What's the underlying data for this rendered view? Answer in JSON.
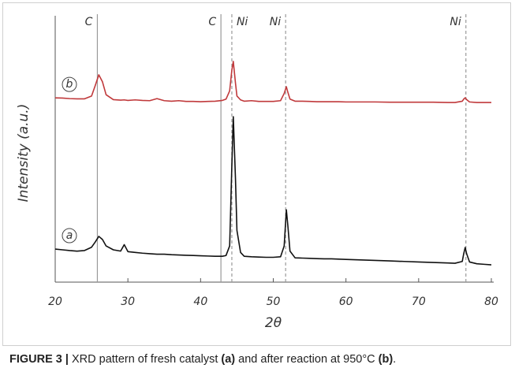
{
  "chart_data": {
    "type": "line",
    "x_label": "2θ",
    "y_label": "Intensity (a.u.)",
    "xlim": [
      20,
      80
    ],
    "xticks": [
      20,
      30,
      40,
      50,
      60,
      70,
      80
    ],
    "ylim": [
      0,
      100
    ],
    "x": [
      20,
      21,
      22,
      23,
      24,
      25,
      25.5,
      26,
      26.5,
      27,
      28,
      29,
      29.5,
      30,
      31,
      32,
      33,
      34,
      35,
      36,
      37,
      38,
      39,
      40,
      41,
      42,
      43,
      43.5,
      44,
      44.3,
      44.5,
      44.8,
      45,
      45.5,
      46,
      47,
      48,
      49,
      50,
      51,
      51.5,
      51.8,
      52,
      52.3,
      53,
      54,
      55,
      56,
      57,
      58,
      59,
      60,
      62,
      64,
      66,
      68,
      70,
      72,
      74,
      75,
      76,
      76.2,
      76.4,
      76.6,
      77,
      78,
      79,
      80
    ],
    "series": [
      {
        "name": "a",
        "color": "#111111",
        "values": [
          12.8,
          12.5,
          12.2,
          12.0,
          12.2,
          13.5,
          15.5,
          17.7,
          16.5,
          14.0,
          12.5,
          12.0,
          14.5,
          11.8,
          11.5,
          11.2,
          11.0,
          10.8,
          10.8,
          10.6,
          10.5,
          10.4,
          10.3,
          10.2,
          10.1,
          10.0,
          10.0,
          10.3,
          14,
          45,
          64,
          40,
          20,
          11.5,
          10.0,
          9.8,
          9.7,
          9.6,
          9.6,
          9.8,
          14,
          28,
          22,
          12,
          9.4,
          9.3,
          9.2,
          9.1,
          9.0,
          9.0,
          8.9,
          8.8,
          8.6,
          8.4,
          8.2,
          8.0,
          7.8,
          7.6,
          7.4,
          7.3,
          8.0,
          11,
          13.4,
          11,
          7.8,
          7.1,
          6.9,
          6.7
        ]
      },
      {
        "name": "b",
        "color": "#c0393b",
        "values": [
          71.3,
          71.2,
          71.0,
          70.9,
          70.9,
          72.0,
          76.0,
          80.2,
          77.5,
          72.5,
          70.6,
          70.4,
          70.5,
          70.3,
          70.5,
          70.3,
          70.2,
          71.0,
          70.2,
          70.0,
          70.2,
          69.9,
          69.9,
          69.8,
          69.9,
          70.0,
          70.3,
          70.8,
          74,
          82,
          85.4,
          77,
          72,
          70.5,
          70.0,
          70.2,
          69.9,
          69.9,
          69.9,
          70.2,
          73,
          75.6,
          73.5,
          70.8,
          70.0,
          70.0,
          69.9,
          69.8,
          69.8,
          69.8,
          69.8,
          69.7,
          69.7,
          69.7,
          69.6,
          69.6,
          69.6,
          69.6,
          69.5,
          69.5,
          70.0,
          70.8,
          71.3,
          70.6,
          69.7,
          69.5,
          69.5,
          69.5
        ]
      }
    ],
    "reference_lines": [
      {
        "x": 25.8,
        "label": "C",
        "style": "solid",
        "color": "#9a9a9a"
      },
      {
        "x": 42.8,
        "label": "C",
        "style": "solid",
        "color": "#9a9a9a"
      },
      {
        "x": 44.3,
        "label": "Ni",
        "style": "dashed",
        "color": "#9a9a9a"
      },
      {
        "x": 51.7,
        "label": "Ni",
        "style": "dashed",
        "color": "#9a9a9a"
      },
      {
        "x": 76.5,
        "label": "Ni",
        "style": "dashed",
        "color": "#9a9a9a"
      }
    ]
  },
  "caption": {
    "parts": [
      {
        "text": "FIGURE 3 |",
        "bold": true
      },
      {
        "text": " XRD pattern of fresh catalyst ",
        "bold": false
      },
      {
        "text": "(a)",
        "bold": true
      },
      {
        "text": " and after reaction at 950°C ",
        "bold": false
      },
      {
        "text": "(b)",
        "bold": true
      },
      {
        "text": ".",
        "bold": false
      }
    ]
  }
}
